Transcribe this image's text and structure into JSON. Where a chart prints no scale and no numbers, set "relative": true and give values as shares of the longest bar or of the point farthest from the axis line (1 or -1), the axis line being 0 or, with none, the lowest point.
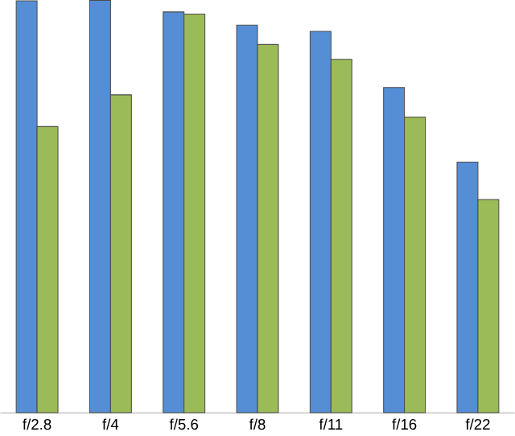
{
  "chart_data": {
    "type": "bar",
    "relative": true,
    "categories": [
      "f/2.8",
      "f/4",
      "f/5.6",
      "f/8",
      "f/11",
      "f/16",
      "f/22"
    ],
    "series": [
      {
        "color": "#558ed5",
        "values": [
          0.999,
          1,
          0.972,
          0.94,
          0.925,
          0.789,
          0.608
        ]
      },
      {
        "color": "#9bbb59",
        "values": [
          0.694,
          0.771,
          0.967,
          0.893,
          0.857,
          0.717,
          0.517
        ]
      }
    ]
  }
}
